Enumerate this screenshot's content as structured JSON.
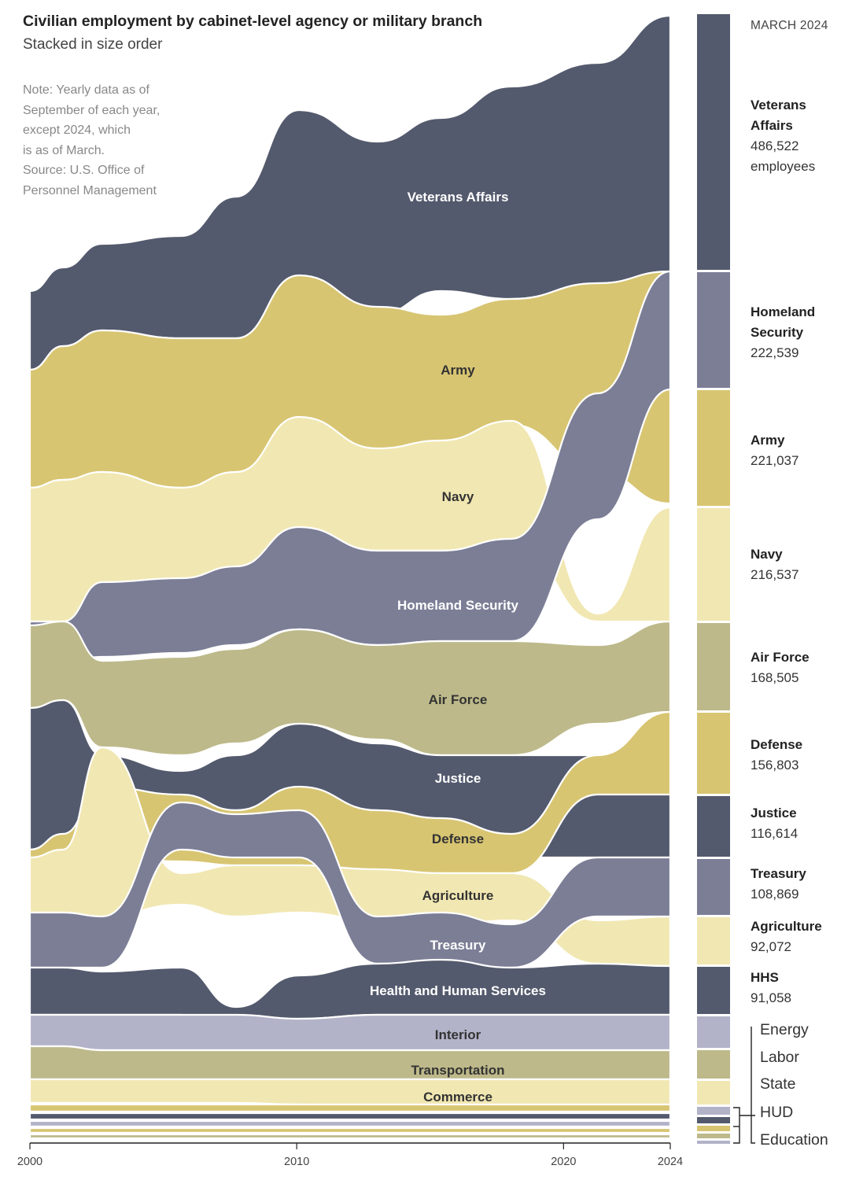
{
  "title": "Civilian employment by cabinet-level agency or military branch",
  "subtitle": "Stacked in size order",
  "note": [
    "Note: Yearly data as of",
    "September of each year,",
    "except 2024, which",
    "is as of March.",
    "Source: U.S. Office of",
    "Personnel Management"
  ],
  "colors": {
    "navy_dark": "#545a6d",
    "slate": "#7b7e95",
    "lavender": "#b2b2c8",
    "gold": "#d8c572",
    "cream": "#f1e7b2",
    "olive": "#bdb98a"
  },
  "legend": {
    "date": "MARCH 2024",
    "items": [
      {
        "name_lines": [
          "Veterans",
          "Affairs"
        ],
        "value": "486,522",
        "unit": "employees"
      },
      {
        "name_lines": [
          "Homeland",
          "Security"
        ],
        "value": "222,539",
        "unit": ""
      },
      {
        "name_lines": [
          "Army"
        ],
        "value": "221,037",
        "unit": ""
      },
      {
        "name_lines": [
          "Navy"
        ],
        "value": "216,537",
        "unit": ""
      },
      {
        "name_lines": [
          "Air Force"
        ],
        "value": "168,505",
        "unit": ""
      },
      {
        "name_lines": [
          "Defense"
        ],
        "value": "156,803",
        "unit": ""
      },
      {
        "name_lines": [
          "Justice"
        ],
        "value": "116,614",
        "unit": ""
      },
      {
        "name_lines": [
          "Treasury"
        ],
        "value": "108,869",
        "unit": ""
      },
      {
        "name_lines": [
          "Agriculture"
        ],
        "value": "92,072",
        "unit": ""
      },
      {
        "name_lines": [
          "HHS"
        ],
        "value": "91,058",
        "unit": ""
      }
    ],
    "small_items": [
      "Energy",
      "Labor",
      "State",
      "HUD",
      "Education"
    ]
  },
  "chart_data": {
    "type": "area",
    "subtype": "ranked streamgraph (stacked in size order)",
    "x_label": "",
    "x_ticks": [
      "2000",
      "2010",
      "2020",
      "2024"
    ],
    "x_range": [
      2000,
      2024
    ],
    "years": [
      2000,
      2001,
      2002,
      2003,
      2004,
      2005,
      2006,
      2007,
      2008,
      2009,
      2010,
      2011,
      2012,
      2013,
      2014,
      2015,
      2016,
      2017,
      2018,
      2019,
      2020,
      2021,
      2022,
      2023,
      2024
    ],
    "series": [
      {
        "name": "Veterans Affairs",
        "color": "#545a6d",
        "label": "Veterans Affairs",
        "values_approx_thousands": [
          220,
          221,
          222,
          223,
          226,
          232,
          235,
          250,
          275,
          300,
          305,
          310,
          305,
          300,
          313,
          330,
          340,
          352,
          372,
          380,
          395,
          415,
          440,
          470,
          486.5
        ]
      },
      {
        "name": "Army",
        "color": "#d8c572",
        "label": "Army",
        "values_approx_thousands": [
          210,
          215,
          220,
          225,
          230,
          232,
          235,
          240,
          250,
          262,
          268,
          270,
          262,
          250,
          245,
          240,
          238,
          238,
          239,
          238,
          238,
          237,
          230,
          225,
          221
        ]
      },
      {
        "name": "Navy",
        "color": "#f1e7b2",
        "label": "Navy",
        "values_approx_thousands": [
          180,
          182,
          180,
          178,
          178,
          178,
          178,
          180,
          185,
          190,
          198,
          200,
          195,
          190,
          192,
          195,
          198,
          205,
          208,
          210,
          212,
          213,
          214,
          215,
          216.5
        ]
      },
      {
        "name": "Homeland Security",
        "color": "#7b7e95",
        "label": "Homeland Security",
        "values_approx_thousands": [
          null,
          null,
          null,
          160,
          162,
          165,
          168,
          172,
          178,
          185,
          190,
          192,
          190,
          188,
          187,
          186,
          187,
          190,
          195,
          200,
          205,
          208,
          213,
          218,
          222.5
        ]
      },
      {
        "name": "Air Force",
        "color": "#bdb98a",
        "label": "Air Force",
        "values_approx_thousands": [
          150,
          152,
          155,
          156,
          155,
          154,
          155,
          156,
          158,
          163,
          168,
          170,
          168,
          163,
          160,
          160,
          161,
          163,
          165,
          168,
          170,
          170,
          169,
          168,
          168.5
        ]
      },
      {
        "name": "Justice",
        "color": "#545a6d",
        "label": "Justice",
        "values_approx_thousands": [
          115,
          118,
          120,
          100,
          102,
          103,
          104,
          105,
          107,
          110,
          113,
          114,
          113,
          112,
          112,
          112,
          113,
          113,
          114,
          114,
          115,
          116,
          116,
          116,
          116.6
        ]
      },
      {
        "name": "Defense",
        "color": "#d8c572",
        "label": "Defense",
        "values_approx_thousands": [
          80,
          80,
          82,
          85,
          87,
          88,
          90,
          92,
          95,
          100,
          110,
          115,
          118,
          120,
          120,
          122,
          124,
          125,
          127,
          130,
          137,
          145,
          150,
          154,
          156.8
        ]
      },
      {
        "name": "Agriculture",
        "color": "#f1e7b2",
        "label": "Agriculture",
        "values_approx_thousands": [
          100,
          102,
          104,
          104,
          104,
          103,
          102,
          100,
          98,
          100,
          101,
          100,
          98,
          96,
          94,
          92,
          91,
          90,
          89,
          88,
          88,
          89,
          90,
          91,
          92.1
        ]
      },
      {
        "name": "Treasury",
        "color": "#7b7e95",
        "label": "Treasury",
        "values_approx_thousands": [
          150,
          148,
          145,
          120,
          115,
          110,
          108,
          108,
          108,
          110,
          112,
          110,
          105,
          100,
          96,
          92,
          90,
          88,
          87,
          88,
          91,
          96,
          100,
          105,
          108.9
        ]
      },
      {
        "name": "Health and Human Services",
        "color": "#545a6d",
        "label": "Health and Human Services",
        "values_approx_thousands": [
          62,
          63,
          64,
          64,
          63,
          62,
          63,
          64,
          66,
          70,
          74,
          76,
          77,
          78,
          79,
          80,
          81,
          82,
          82,
          83,
          84,
          85,
          87,
          89,
          91.1
        ]
      },
      {
        "name": "Interior",
        "color": "#b2b2c8",
        "label": "Interior",
        "values_approx_thousands": [
          72,
          72,
          73,
          74,
          74,
          74,
          73,
          72,
          71,
          71,
          71,
          70,
          69,
          68,
          67,
          66,
          66,
          66,
          65,
          65,
          64,
          64,
          63,
          63,
          63
        ]
      },
      {
        "name": "Transportation",
        "color": "#bdb98a",
        "label": "Transportation",
        "values_approx_thousands": [
          64,
          64,
          65,
          58,
          56,
          55,
          54,
          54,
          55,
          56,
          57,
          57,
          56,
          55,
          55,
          55,
          55,
          55,
          54,
          54,
          54,
          54,
          54,
          54,
          54
        ]
      },
      {
        "name": "Commerce",
        "color": "#f1e7b2",
        "label": "Commerce",
        "values_approx_thousands": [
          40,
          38,
          36,
          37,
          38,
          38,
          38,
          38,
          39,
          40,
          42,
          43,
          43,
          43,
          43,
          44,
          45,
          46,
          46,
          47,
          48,
          48,
          48,
          48,
          48
        ]
      },
      {
        "name": "Energy",
        "color": "#b2b2c8",
        "label": "",
        "values_approx_thousands": [
          15,
          15,
          15,
          15,
          15,
          15,
          15,
          15,
          15,
          16,
          16,
          16,
          16,
          15,
          15,
          15,
          15,
          14,
          14,
          14,
          14,
          14,
          14,
          14,
          14
        ]
      },
      {
        "name": "Labor",
        "color": "#bdb98a",
        "label": "",
        "values_approx_thousands": [
          16,
          16,
          16,
          16,
          16,
          15,
          15,
          15,
          15,
          16,
          17,
          17,
          17,
          16,
          16,
          15,
          15,
          15,
          15,
          14,
          14,
          14,
          14,
          14,
          14
        ]
      },
      {
        "name": "State",
        "color": "#f1e7b2",
        "label": "",
        "values_approx_thousands": [
          22,
          22,
          22,
          23,
          23,
          23,
          24,
          24,
          25,
          25,
          26,
          26,
          26,
          26,
          26,
          27,
          27,
          27,
          26,
          26,
          26,
          26,
          27,
          27,
          27
        ]
      },
      {
        "name": "HUD",
        "color": "#545a6d",
        "label": "",
        "values_approx_thousands": [
          10,
          10,
          10,
          10,
          10,
          10,
          10,
          10,
          9,
          9,
          9,
          9,
          9,
          9,
          8,
          8,
          8,
          8,
          8,
          8,
          8,
          8,
          8,
          8,
          8
        ]
      },
      {
        "name": "Education",
        "color": "#d8c572",
        "label": "",
        "values_approx_thousands": [
          5,
          5,
          5,
          5,
          5,
          5,
          5,
          5,
          4,
          4,
          4,
          4,
          4,
          4,
          4,
          4,
          4,
          4,
          4,
          4,
          4,
          4,
          4,
          4,
          4
        ]
      }
    ],
    "legend_placement": "right",
    "grid": false
  }
}
